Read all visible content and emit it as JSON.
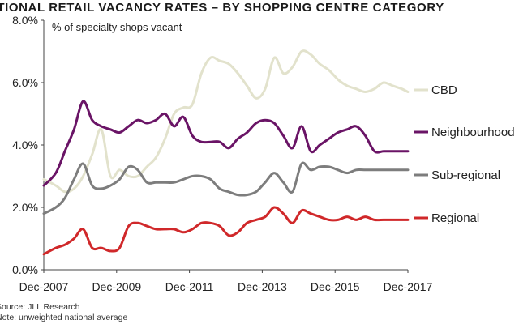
{
  "title": "ATIONAL RETAIL VACANCY RATES – BY SHOPPING CENTRE CATEGORY",
  "footer": {
    "source": "Source: JLL Research",
    "note": "Note: unweighted national average"
  },
  "chart_data": {
    "type": "line",
    "title": "ATIONAL RETAIL VACANCY RATES – BY SHOPPING CENTRE CATEGORY",
    "ylabel": "% of specialty shops vacant",
    "xlabel": "",
    "x": [
      2007.92,
      2008.25,
      2008.5,
      2008.75,
      2009.0,
      2009.25,
      2009.5,
      2009.75,
      2010.0,
      2010.25,
      2010.5,
      2010.75,
      2011.0,
      2011.25,
      2011.5,
      2011.75,
      2012.0,
      2012.25,
      2012.5,
      2012.75,
      2013.0,
      2013.25,
      2013.5,
      2013.75,
      2014.0,
      2014.25,
      2014.5,
      2014.75,
      2015.0,
      2015.25,
      2015.5,
      2015.75,
      2016.0,
      2016.25,
      2016.5,
      2016.75,
      2017.0,
      2017.25,
      2017.5,
      2017.75,
      2017.92
    ],
    "xticks": [
      "Dec-2007",
      "Dec-2009",
      "Dec-2011",
      "Dec-2013",
      "Dec-2015",
      "Dec-2017"
    ],
    "xtick_values": [
      2007.92,
      2009.92,
      2011.92,
      2013.92,
      2015.92,
      2017.92
    ],
    "xlim": [
      2007.92,
      2017.92
    ],
    "ylim": [
      0,
      8
    ],
    "yticks": [
      "0.0%",
      "2.0%",
      "4.0%",
      "6.0%",
      "8.0%"
    ],
    "ytick_values": [
      0,
      2,
      4,
      6,
      8
    ],
    "grid": false,
    "legend_position": "right",
    "series": [
      {
        "name": "CBD",
        "color": "#e2e2cc",
        "values": [
          2.9,
          2.7,
          2.5,
          2.6,
          3.0,
          3.7,
          4.5,
          3.0,
          3.2,
          3.0,
          3.0,
          3.3,
          3.6,
          4.2,
          5.0,
          5.2,
          5.3,
          6.3,
          6.8,
          6.7,
          6.6,
          6.3,
          5.9,
          5.5,
          5.8,
          6.8,
          6.3,
          6.5,
          7.0,
          6.9,
          6.6,
          6.4,
          6.1,
          5.9,
          5.8,
          5.7,
          5.8,
          6.0,
          5.9,
          5.8,
          5.7
        ]
      },
      {
        "name": "Neighbourhood",
        "color": "#6a1466",
        "values": [
          2.7,
          3.1,
          3.8,
          4.5,
          5.4,
          4.8,
          4.6,
          4.5,
          4.4,
          4.6,
          4.8,
          4.7,
          4.8,
          5.0,
          4.6,
          4.9,
          4.3,
          4.1,
          4.1,
          4.1,
          3.9,
          4.2,
          4.4,
          4.7,
          4.8,
          4.7,
          4.3,
          3.9,
          4.6,
          3.8,
          4.0,
          4.2,
          4.4,
          4.5,
          4.6,
          4.3,
          3.8,
          3.8,
          3.8,
          3.8,
          3.8
        ]
      },
      {
        "name": "Sub-regional",
        "color": "#7d7d7d",
        "values": [
          1.8,
          2.0,
          2.3,
          2.9,
          3.4,
          2.7,
          2.6,
          2.7,
          2.9,
          3.3,
          3.2,
          2.8,
          2.8,
          2.8,
          2.8,
          2.9,
          3.0,
          3.0,
          2.9,
          2.6,
          2.5,
          2.4,
          2.4,
          2.5,
          2.8,
          3.1,
          2.8,
          2.5,
          3.4,
          3.2,
          3.3,
          3.3,
          3.2,
          3.1,
          3.2,
          3.2,
          3.2,
          3.2,
          3.2,
          3.2,
          3.2
        ]
      },
      {
        "name": "Regional",
        "color": "#d0282a",
        "values": [
          0.5,
          0.7,
          0.8,
          1.0,
          1.3,
          0.7,
          0.7,
          0.6,
          0.7,
          1.4,
          1.5,
          1.4,
          1.3,
          1.3,
          1.3,
          1.2,
          1.3,
          1.5,
          1.5,
          1.4,
          1.1,
          1.2,
          1.5,
          1.6,
          1.7,
          2.0,
          1.8,
          1.5,
          1.9,
          1.8,
          1.7,
          1.6,
          1.6,
          1.7,
          1.6,
          1.7,
          1.6,
          1.6,
          1.6,
          1.6,
          1.6
        ]
      }
    ]
  }
}
